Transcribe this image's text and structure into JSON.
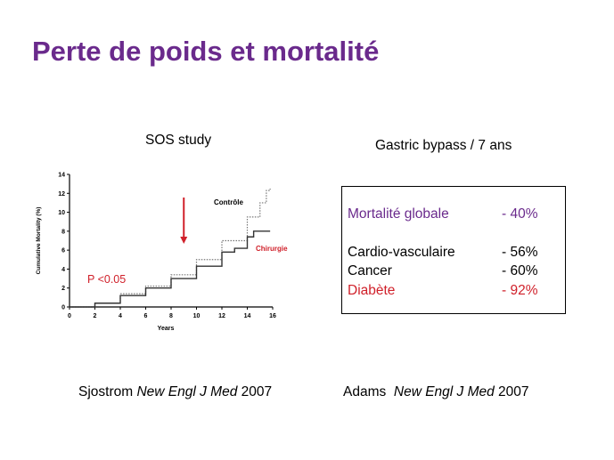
{
  "slide": {
    "title": "Perte de poids et mortalité",
    "colors": {
      "title": "#6a2a8c",
      "red": "#d0202a",
      "purple": "#6a2a8c"
    }
  },
  "left": {
    "heading": "SOS study",
    "ref_author": "Sjostrom",
    "ref_journal": "New Engl J Med",
    "ref_year": "2007"
  },
  "right": {
    "heading": "Gastric bypass / 7 ans",
    "rows": [
      {
        "label": "Mortalité globale",
        "value": "- 40%",
        "color": "#6a2a8c"
      },
      {
        "label": "Cardio-vasculaire",
        "value": "- 56%",
        "color": "#000000"
      },
      {
        "label": "Cancer",
        "value": "- 60%",
        "color": "#000000"
      },
      {
        "label": "Diabète",
        "value": "- 92%",
        "color": "#d0202a"
      }
    ],
    "ref_author": "Adams",
    "ref_journal": "New Engl J Med",
    "ref_year": "2007"
  },
  "chart_data": {
    "type": "line",
    "title": "",
    "xlabel": "Years",
    "ylabel": "Cumulative Mortality (%)",
    "xlim": [
      0,
      16
    ],
    "ylim": [
      0,
      14
    ],
    "xticks": [
      "0",
      "2",
      "4",
      "6",
      "8",
      "10",
      "12",
      "14",
      "16"
    ],
    "yticks": [
      "0",
      "2",
      "4",
      "6",
      "8",
      "10",
      "12",
      "14"
    ],
    "grid": false,
    "series": [
      {
        "name": "Contrôle",
        "style": "dotted",
        "color": "#777777",
        "x": [
          0,
          2,
          4,
          6,
          8,
          10,
          12,
          14,
          15,
          15.5,
          15.8
        ],
        "y": [
          0,
          0.4,
          1.4,
          2.2,
          3.4,
          5.0,
          7.0,
          9.5,
          11.0,
          12.3,
          12.5
        ]
      },
      {
        "name": "Chirurgie",
        "style": "solid",
        "color": "#333333",
        "x": [
          0,
          2,
          4,
          6,
          8,
          10,
          12,
          13,
          14,
          14.5,
          15.8
        ],
        "y": [
          0,
          0.4,
          1.2,
          2.0,
          3.0,
          4.3,
          5.8,
          6.2,
          7.4,
          8.0,
          8.0
        ]
      }
    ],
    "annotations": [
      {
        "text": "P <0.05",
        "color": "#d0202a"
      },
      {
        "text": "Contrôle",
        "color": "#000000"
      },
      {
        "text": "Chirurgie",
        "color": "#d0202a"
      }
    ],
    "arrow": {
      "x": 9,
      "color": "#d0202a",
      "direction": "down"
    }
  }
}
